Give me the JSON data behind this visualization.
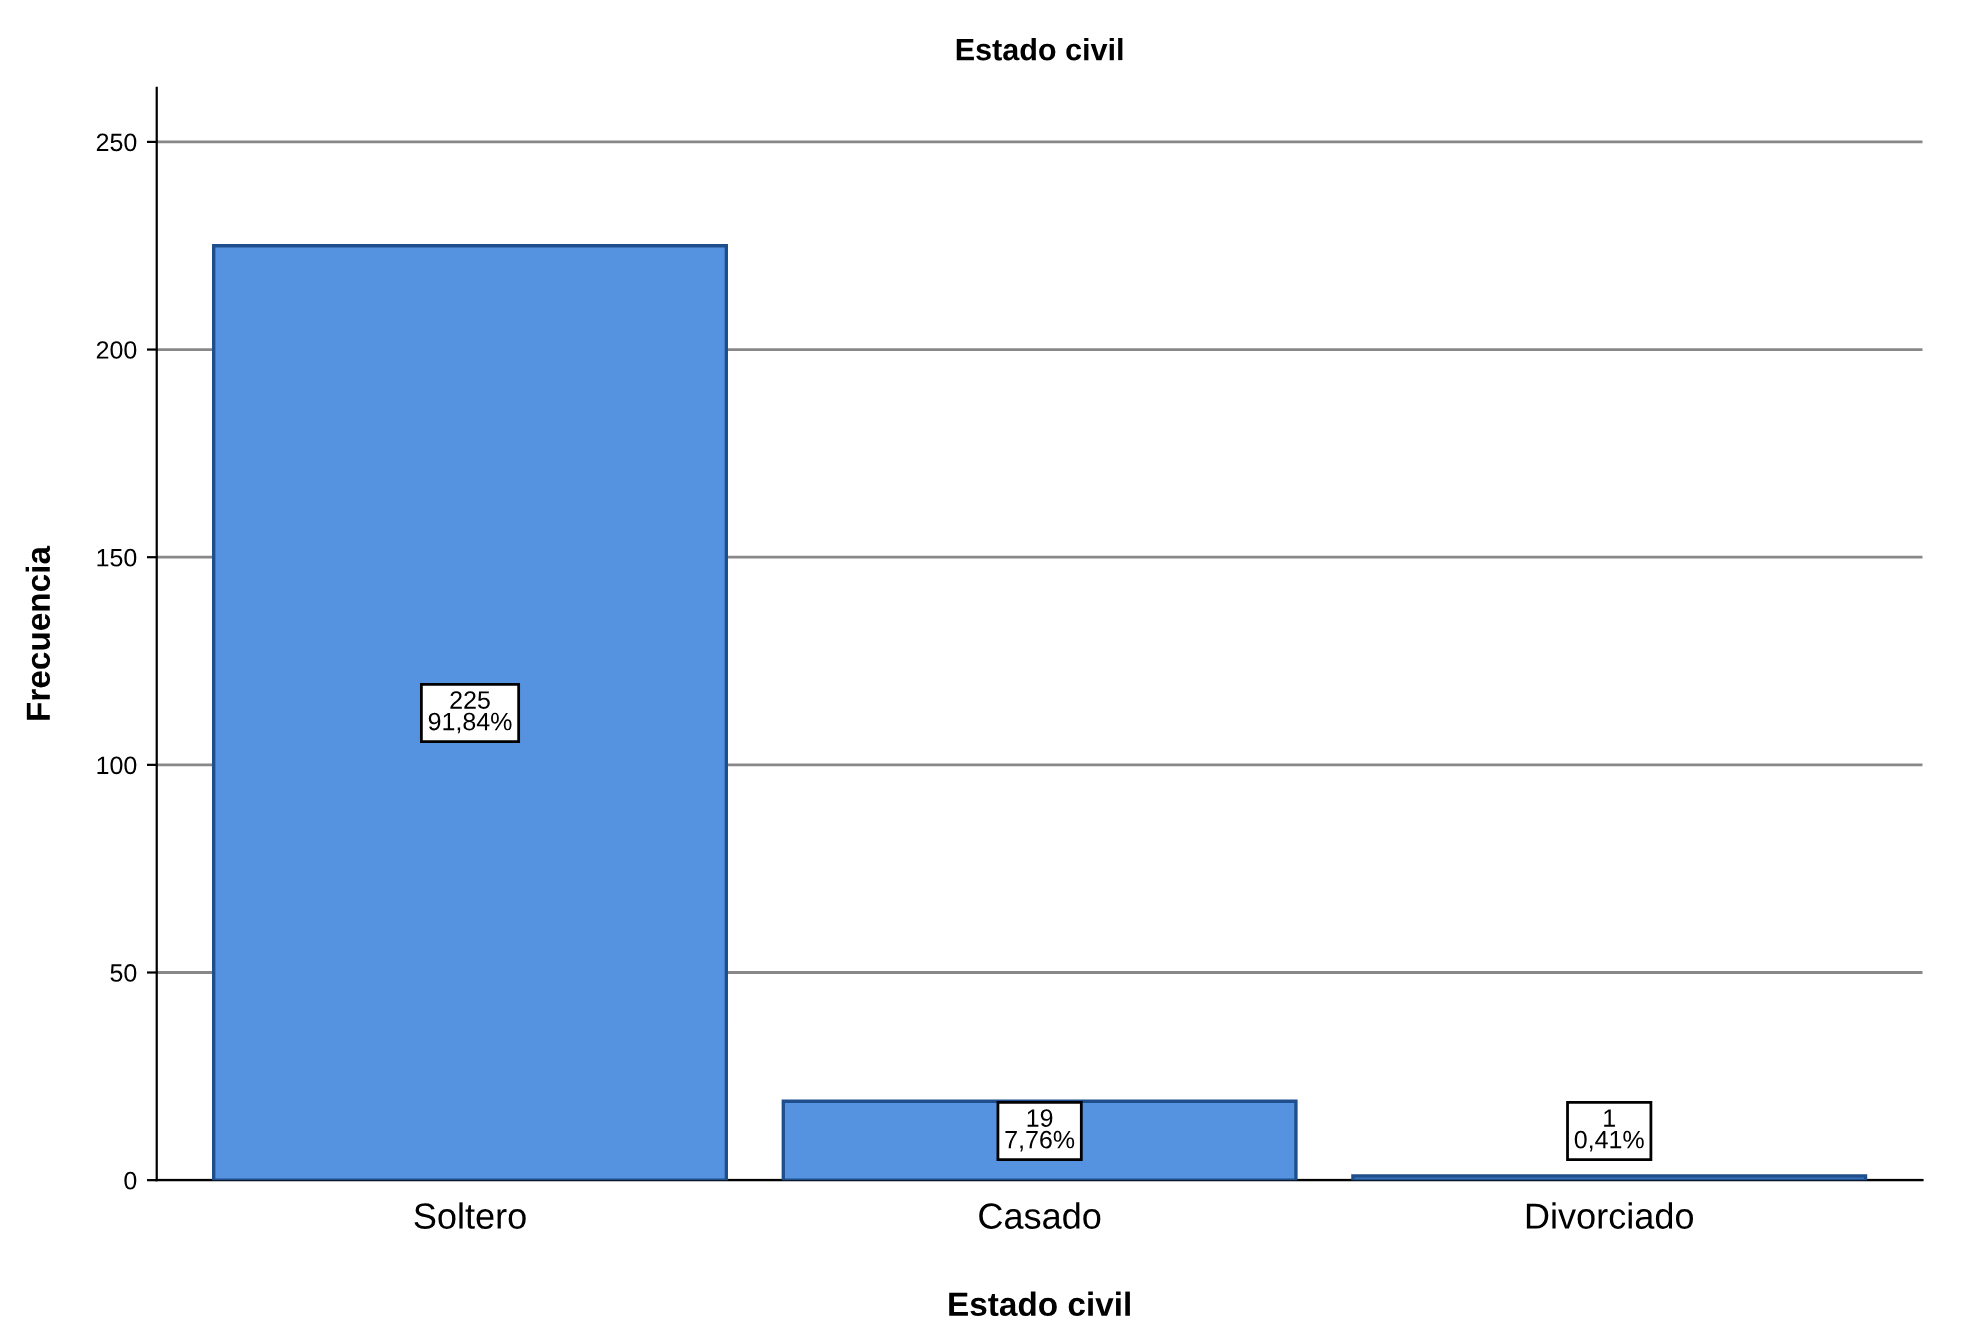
{
  "chart_data": {
    "type": "bar",
    "title": "Estado civil",
    "xlabel": "Estado civil",
    "ylabel": "Frecuencia",
    "categories": [
      "Soltero",
      "Casado",
      "Divorciado"
    ],
    "values": [
      225,
      19,
      1
    ],
    "value_labels": [
      "225\n91,84%",
      "19\n7,76%",
      "1\n0,41%"
    ],
    "color": "#5593e0",
    "ylim": [
      0,
      263
    ],
    "yticks": [
      0,
      50,
      100,
      150,
      200,
      250
    ],
    "grid": "y",
    "legend": false
  }
}
